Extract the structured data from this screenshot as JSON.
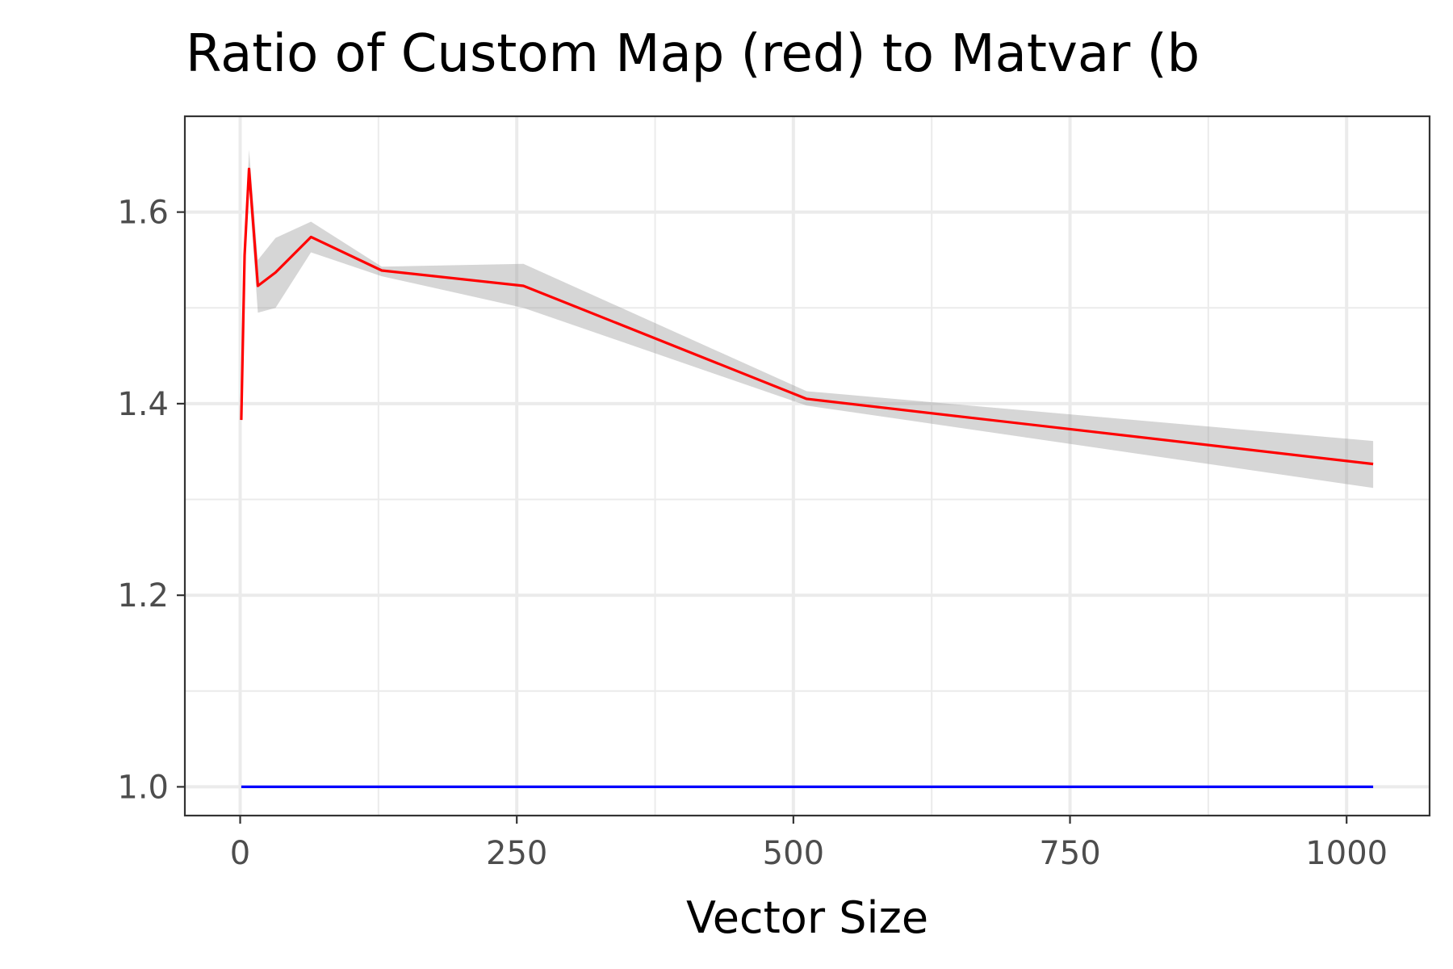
{
  "chart_data": {
    "type": "line",
    "title": "Ratio of Custom Map (red) to Matvar (b",
    "xlabel": "Vector Size",
    "ylabel": "",
    "xlim": [
      -50,
      1075
    ],
    "ylim": [
      0.97,
      1.7
    ],
    "xticks": [
      0,
      250,
      500,
      750,
      1000
    ],
    "xtick_labels": [
      "0",
      "250",
      "500",
      "750",
      "1000"
    ],
    "yticks": [
      1.0,
      1.2,
      1.4,
      1.6
    ],
    "ytick_labels": [
      "1.0",
      "1.2",
      "1.4",
      "1.6"
    ],
    "grid": true,
    "legend": "none",
    "colors": {
      "series_custom": "#ff0000",
      "series_matvar": "#0000ff",
      "band": "#999999"
    },
    "series": [
      {
        "x": [
          1,
          4,
          8,
          16,
          32,
          64,
          128,
          256,
          512,
          1024
        ],
        "values": [
          1.383,
          1.555,
          1.645,
          1.523,
          1.537,
          1.574,
          1.539,
          1.523,
          1.405,
          1.337
        ],
        "lower": [
          1.383,
          1.545,
          1.625,
          1.495,
          1.5,
          1.558,
          1.533,
          1.5,
          1.398,
          1.312
        ],
        "upper": [
          1.383,
          1.565,
          1.665,
          1.55,
          1.573,
          1.59,
          1.543,
          1.546,
          1.413,
          1.361
        ],
        "color": "#ff0000"
      },
      {
        "x": [
          1,
          4,
          8,
          16,
          32,
          64,
          128,
          256,
          512,
          1024
        ],
        "values": [
          1,
          1,
          1,
          1,
          1,
          1,
          1,
          1,
          1,
          1
        ],
        "color": "#0000ff"
      }
    ]
  }
}
